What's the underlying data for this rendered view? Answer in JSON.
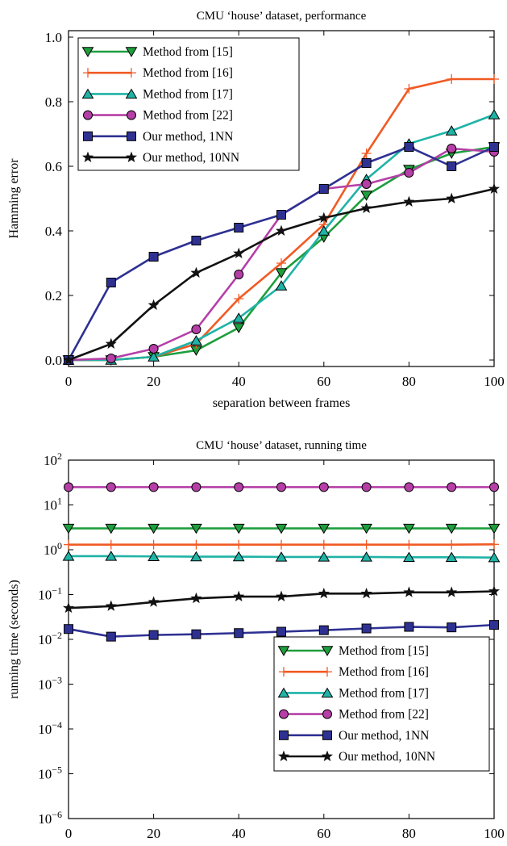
{
  "chart_data": [
    {
      "type": "line",
      "title": "CMU ‘house’ dataset, performance",
      "xlabel": "separation between frames",
      "ylabel": "Hamming error",
      "xlim": [
        0,
        100
      ],
      "ylim": [
        0,
        1.0
      ],
      "yscale": "linear",
      "xticks": [
        "0",
        "20",
        "40",
        "60",
        "80",
        "100"
      ],
      "yticks": [
        "0.0",
        "0.2",
        "0.4",
        "0.6",
        "0.8",
        "1.0"
      ],
      "legend_position": "top-left",
      "grid": false,
      "x": [
        0,
        10,
        20,
        30,
        40,
        50,
        60,
        70,
        80,
        90,
        100
      ],
      "series": [
        {
          "name": "Method from [15]",
          "color": "#1e9e3e",
          "marker": "triangle-down",
          "values": [
            0.0,
            0.0,
            0.01,
            0.03,
            0.1,
            0.27,
            0.38,
            0.51,
            0.59,
            0.64,
            0.66
          ]
        },
        {
          "name": "Method from [16]",
          "color": "#f15a24",
          "marker": "plus",
          "values": [
            0.0,
            0.0,
            0.01,
            0.05,
            0.19,
            0.3,
            0.42,
            0.64,
            0.84,
            0.87,
            0.87
          ]
        },
        {
          "name": "Method from [17]",
          "color": "#1fb3a6",
          "marker": "triangle-up",
          "values": [
            0.0,
            0.0,
            0.01,
            0.06,
            0.13,
            0.23,
            0.4,
            0.56,
            0.67,
            0.71,
            0.76
          ]
        },
        {
          "name": "Method from [22]",
          "color": "#b53fa7",
          "marker": "circle",
          "values": [
            0.0,
            0.005,
            0.035,
            0.095,
            0.265,
            0.45,
            0.53,
            0.545,
            0.58,
            0.655,
            0.645
          ]
        },
        {
          "name": "Our method, 1NN",
          "color": "#2e3192",
          "marker": "square",
          "values": [
            0.0,
            0.24,
            0.32,
            0.37,
            0.41,
            0.45,
            0.53,
            0.61,
            0.66,
            0.6,
            0.66
          ]
        },
        {
          "name": "Our method, 10NN",
          "color": "#111111",
          "marker": "star",
          "values": [
            0.0,
            0.05,
            0.17,
            0.27,
            0.33,
            0.4,
            0.44,
            0.47,
            0.49,
            0.5,
            0.53
          ]
        }
      ]
    },
    {
      "type": "line",
      "title": "CMU ‘house’ dataset, running time",
      "xlabel": "separation between frames",
      "ylabel": "running time (seconds)",
      "xlim": [
        0,
        100
      ],
      "ylim": [
        1e-06,
        100.0
      ],
      "yscale": "log",
      "xticks": [
        "0",
        "20",
        "40",
        "60",
        "80",
        "100"
      ],
      "yticks": [
        {
          "base": "10",
          "exp": "2"
        },
        {
          "base": "10",
          "exp": "1"
        },
        {
          "base": "10",
          "exp": "0"
        },
        {
          "base": "10",
          "exp": "−1"
        },
        {
          "base": "10",
          "exp": "−2"
        },
        {
          "base": "10",
          "exp": "−3"
        },
        {
          "base": "10",
          "exp": "−4"
        },
        {
          "base": "10",
          "exp": "−5"
        },
        {
          "base": "10",
          "exp": "−6"
        }
      ],
      "legend_position": "bottom-right",
      "grid": false,
      "x": [
        0,
        10,
        20,
        30,
        40,
        50,
        60,
        70,
        80,
        90,
        100
      ],
      "series": [
        {
          "name": "Method from [15]",
          "color": "#1e9e3e",
          "marker": "triangle-down",
          "values": [
            3.0,
            3.0,
            3.0,
            3.0,
            3.0,
            3.0,
            3.0,
            3.0,
            3.0,
            3.0,
            3.0
          ]
        },
        {
          "name": "Method from [16]",
          "color": "#f15a24",
          "marker": "plus",
          "values": [
            1.3,
            1.3,
            1.3,
            1.3,
            1.3,
            1.3,
            1.3,
            1.3,
            1.3,
            1.3,
            1.32
          ]
        },
        {
          "name": "Method from [17]",
          "color": "#1fb3a6",
          "marker": "triangle-up",
          "values": [
            0.72,
            0.72,
            0.71,
            0.7,
            0.7,
            0.69,
            0.69,
            0.69,
            0.68,
            0.68,
            0.67
          ]
        },
        {
          "name": "Method from [22]",
          "color": "#b53fa7",
          "marker": "circle",
          "values": [
            25,
            25,
            25,
            25,
            25,
            25,
            25,
            25,
            25,
            25,
            25
          ]
        },
        {
          "name": "Our method, 1NN",
          "color": "#2e3192",
          "marker": "square",
          "values": [
            0.017,
            0.0115,
            0.0125,
            0.013,
            0.0138,
            0.0148,
            0.016,
            0.0175,
            0.019,
            0.0185,
            0.021
          ]
        },
        {
          "name": "Our method, 10NN",
          "color": "#111111",
          "marker": "star",
          "values": [
            0.05,
            0.055,
            0.068,
            0.082,
            0.09,
            0.09,
            0.105,
            0.105,
            0.112,
            0.112,
            0.118
          ]
        }
      ]
    }
  ]
}
